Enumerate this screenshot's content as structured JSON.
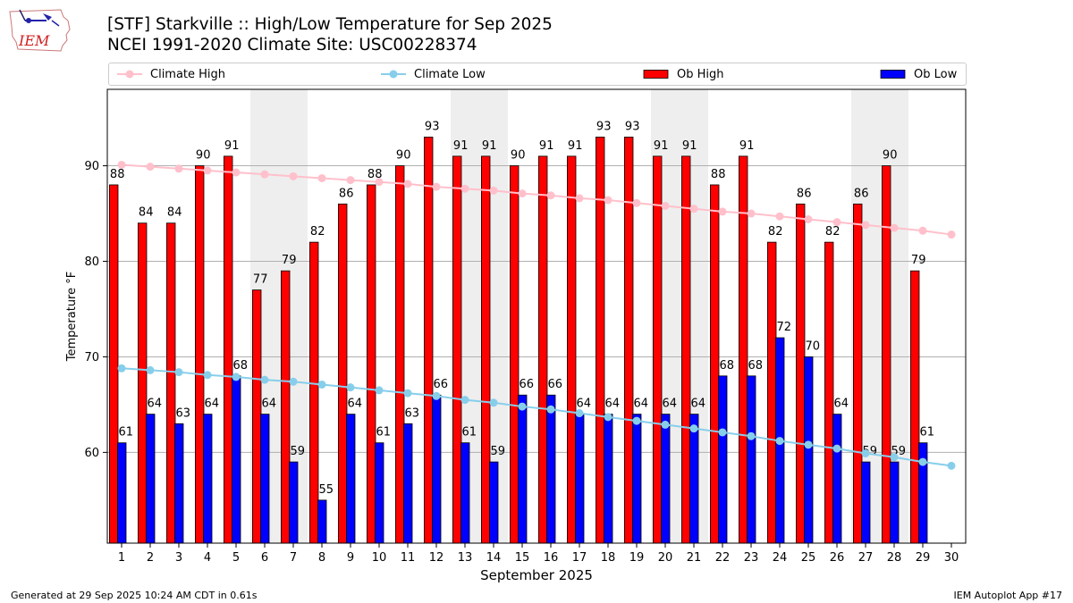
{
  "header": {
    "title_line1": "[STF] Starkville :: High/Low Temperature for Sep 2025",
    "title_line2": "NCEI 1991-2020 Climate Site: USC00228374"
  },
  "logo": {
    "text": "IEM"
  },
  "footer": {
    "generated": "Generated at 29 Sep 2025 10:24 AM CDT in 0.61s",
    "app": "IEM Autoplot App #17"
  },
  "colors": {
    "ob_high": "#ff0000",
    "ob_low": "#0000ff",
    "climate_high": "#ffc0cb",
    "climate_low": "#87ceeb",
    "weekend_shade": "#eeeeee",
    "grid": "#b0b0b0"
  },
  "legend": {
    "climate_high": "Climate High",
    "climate_low": "Climate Low",
    "ob_high": "Ob High",
    "ob_low": "Ob Low"
  },
  "chart_data": {
    "type": "bar",
    "title": "[STF] Starkville :: High/Low Temperature for Sep 2025",
    "xlabel": "September 2025",
    "ylabel": "Temperature °F",
    "ylim": [
      50.5,
      98
    ],
    "yticks": [
      60,
      70,
      80,
      90
    ],
    "grid": "horizontal",
    "legend_position": "top",
    "categories": [
      "1",
      "2",
      "3",
      "4",
      "5",
      "6",
      "7",
      "8",
      "9",
      "10",
      "11",
      "12",
      "13",
      "14",
      "15",
      "16",
      "17",
      "18",
      "19",
      "20",
      "21",
      "22",
      "23",
      "24",
      "25",
      "26",
      "27",
      "28",
      "29",
      "30"
    ],
    "shaded_days": [
      6,
      7,
      13,
      14,
      20,
      21,
      27,
      28
    ],
    "series": [
      {
        "name": "Ob High",
        "type": "bar",
        "values": [
          88,
          84,
          84,
          90,
          91,
          77,
          79,
          82,
          86,
          88,
          90,
          93,
          91,
          91,
          90,
          91,
          91,
          93,
          93,
          91,
          91,
          88,
          91,
          82,
          86,
          82,
          86,
          90,
          79,
          null
        ]
      },
      {
        "name": "Ob Low",
        "type": "bar",
        "values": [
          61,
          64,
          63,
          64,
          68,
          64,
          59,
          55,
          64,
          61,
          63,
          66,
          61,
          59,
          66,
          66,
          64,
          64,
          64,
          64,
          64,
          68,
          68,
          72,
          70,
          64,
          59,
          59,
          61,
          null
        ]
      },
      {
        "name": "Climate High",
        "type": "line",
        "values": [
          90.1,
          89.9,
          89.7,
          89.5,
          89.3,
          89.1,
          88.9,
          88.7,
          88.5,
          88.3,
          88.1,
          87.8,
          87.6,
          87.4,
          87.1,
          86.9,
          86.6,
          86.4,
          86.1,
          85.8,
          85.5,
          85.2,
          85.0,
          84.7,
          84.4,
          84.1,
          83.8,
          83.5,
          83.2,
          82.8
        ]
      },
      {
        "name": "Climate Low",
        "type": "line",
        "values": [
          68.8,
          68.6,
          68.4,
          68.1,
          67.9,
          67.6,
          67.4,
          67.1,
          66.8,
          66.5,
          66.2,
          65.9,
          65.5,
          65.2,
          64.8,
          64.5,
          64.1,
          63.7,
          63.3,
          62.9,
          62.5,
          62.1,
          61.7,
          61.2,
          60.8,
          60.4,
          59.9,
          59.5,
          59.0,
          58.6
        ]
      }
    ]
  }
}
